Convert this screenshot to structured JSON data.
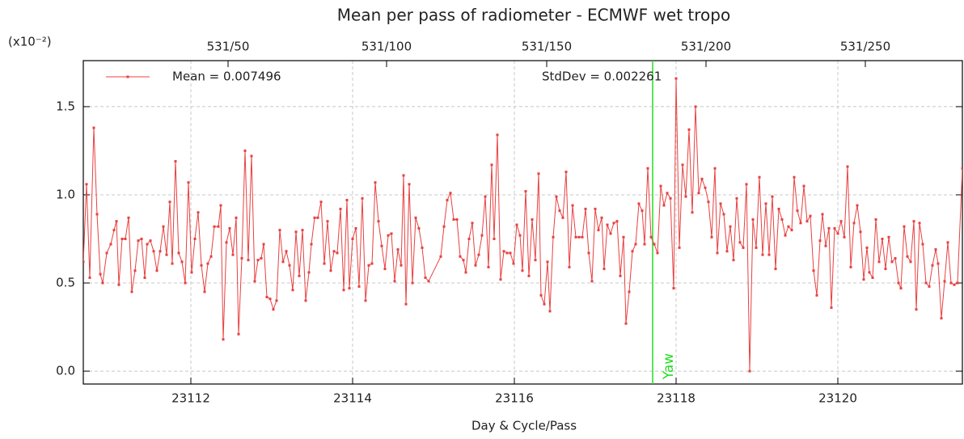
{
  "chart_data": {
    "type": "line",
    "title": "Mean per pass of radiometer - ECMWF wet tropo",
    "xlabel": "Day & Cycle/Pass",
    "y_unit": "(x10⁻²)",
    "xlim": [
      23110.67,
      23121.54
    ],
    "ylim": [
      -0.073,
      1.761
    ],
    "xticks": [
      23112,
      23114,
      23116,
      23118,
      23120
    ],
    "yticks": [
      {
        "value": 0,
        "label": "0.0"
      },
      0.5,
      {
        "value": 1,
        "label": "1.0"
      },
      1.5
    ],
    "x2ticks": [
      {
        "value": 23112.46,
        "label": "531/50"
      },
      {
        "value": 23114.42,
        "label": "531/100"
      },
      {
        "value": 23116.4,
        "label": "531/150"
      },
      {
        "value": 23118.37,
        "label": "531/200"
      },
      {
        "value": 23120.34,
        "label": "531/250"
      }
    ],
    "grid": true,
    "legend": "upper left",
    "annotation": "StdDev = 0.002261",
    "vline": {
      "x": 23117.71,
      "label": "Yaw",
      "color": "#22dd22"
    },
    "x": [
      23110.67,
      23110.71,
      23110.75,
      23110.8,
      23110.84,
      23110.88,
      23110.91,
      23110.96,
      23111.01,
      23111.05,
      23111.08,
      23111.11,
      23111.15,
      23111.19,
      23111.23,
      23111.27,
      23111.31,
      23111.35,
      23111.39,
      23111.43,
      23111.46,
      23111.5,
      23111.54,
      23111.58,
      23111.62,
      23111.66,
      23111.7,
      23111.74,
      23111.77,
      23111.81,
      23111.85,
      23111.89,
      23111.93,
      23111.97,
      23112.01,
      23112.05,
      23112.09,
      23112.13,
      23112.17,
      23112.21,
      23112.25,
      23112.29,
      23112.34,
      23112.37,
      23112.4,
      23112.44,
      23112.48,
      23112.52,
      23112.56,
      23112.59,
      23112.63,
      23112.67,
      23112.71,
      23112.75,
      23112.79,
      23112.83,
      23112.87,
      23112.9,
      23112.94,
      23112.98,
      23113.02,
      23113.06,
      23113.1,
      23113.14,
      23113.18,
      23113.22,
      23113.26,
      23113.3,
      23113.34,
      23113.38,
      23113.42,
      23113.46,
      23113.49,
      23113.53,
      23113.57,
      23113.61,
      23113.65,
      23113.69,
      23113.73,
      23113.77,
      23113.81,
      23113.85,
      23113.89,
      23113.93,
      23113.96,
      23114.0,
      23114.04,
      23114.08,
      23114.12,
      23114.16,
      23114.2,
      23114.24,
      23114.28,
      23114.32,
      23114.36,
      23114.4,
      23114.44,
      23114.48,
      23114.52,
      23114.56,
      23114.6,
      23114.63,
      23114.66,
      23114.7,
      23114.74,
      23114.78,
      23114.82,
      23114.86,
      23114.9,
      23114.94,
      23115.09,
      23115.13,
      23115.17,
      23115.21,
      23115.25,
      23115.29,
      23115.33,
      23115.37,
      23115.4,
      23115.44,
      23115.48,
      23115.52,
      23115.56,
      23115.6,
      23115.64,
      23115.68,
      23115.72,
      23115.75,
      23115.79,
      23115.83,
      23115.87,
      23115.91,
      23115.95,
      23115.99,
      23116.03,
      23116.07,
      23116.1,
      23116.14,
      23116.18,
      23116.22,
      23116.26,
      23116.3,
      23116.33,
      23116.37,
      23116.41,
      23116.44,
      23116.48,
      23116.52,
      23116.56,
      23116.6,
      23116.64,
      23116.68,
      23116.72,
      23116.76,
      23116.8,
      23116.84,
      23116.88,
      23116.92,
      23116.96,
      23117.0,
      23117.04,
      23117.08,
      23117.11,
      23117.15,
      23117.19,
      23117.23,
      23117.27,
      23117.31,
      23117.35,
      23117.38,
      23117.42,
      23117.46,
      23117.5,
      23117.54,
      23117.58,
      23117.61,
      23117.65,
      23117.69,
      23117.73,
      23117.77,
      23117.81,
      23117.85,
      23117.89,
      23117.93,
      23117.97,
      23118.0,
      23118.04,
      23118.08,
      23118.12,
      23118.16,
      23118.2,
      23118.24,
      23118.28,
      23118.32,
      23118.36,
      23118.4,
      23118.44,
      23118.48,
      23118.51,
      23118.55,
      23118.59,
      23118.63,
      23118.67,
      23118.71,
      23118.75,
      23118.79,
      23118.83,
      23118.87,
      23118.91,
      23118.95,
      23118.99,
      23119.03,
      23119.07,
      23119.11,
      23119.15,
      23119.19,
      23119.23,
      23119.27,
      23119.31,
      23119.35,
      23119.39,
      23119.43,
      23119.46,
      23119.5,
      23119.54,
      23119.58,
      23119.62,
      23119.66,
      23119.7,
      23119.74,
      23119.78,
      23119.81,
      23119.85,
      23119.89,
      23119.92,
      23119.96,
      23120.0,
      23120.04,
      23120.08,
      23120.12,
      23120.16,
      23120.2,
      23120.24,
      23120.28,
      23120.32,
      23120.36,
      23120.39,
      23120.43,
      23120.47,
      23120.51,
      23120.55,
      23120.59,
      23120.63,
      23120.67,
      23120.71,
      23120.75,
      23120.78,
      23120.82,
      23120.86,
      23120.9,
      23120.94,
      23120.97,
      23121.01,
      23121.05,
      23121.09,
      23121.13,
      23121.17,
      23121.21,
      23121.24,
      23121.28,
      23121.32,
      23121.36,
      23121.4,
      23121.44,
      23121.48,
      23121.54
    ],
    "series": [
      {
        "name": "Mean = 0.007496",
        "color": "#e84040",
        "values": [
          0.62,
          1.06,
          0.53,
          1.38,
          0.89,
          0.55,
          0.5,
          0.67,
          0.72,
          0.8,
          0.85,
          0.49,
          0.75,
          0.75,
          0.87,
          0.45,
          0.57,
          0.74,
          0.75,
          0.53,
          0.72,
          0.74,
          0.68,
          0.57,
          0.68,
          0.82,
          0.66,
          0.96,
          0.61,
          1.19,
          0.67,
          0.62,
          0.5,
          1.07,
          0.56,
          0.75,
          0.9,
          0.6,
          0.45,
          0.61,
          0.65,
          0.82,
          0.82,
          0.94,
          0.18,
          0.73,
          0.81,
          0.66,
          0.87,
          0.21,
          0.64,
          1.25,
          0.63,
          1.22,
          0.51,
          0.63,
          0.64,
          0.72,
          0.42,
          0.41,
          0.35,
          0.4,
          0.8,
          0.62,
          0.68,
          0.6,
          0.46,
          0.79,
          0.54,
          0.8,
          0.4,
          0.56,
          0.72,
          0.87,
          0.87,
          0.96,
          0.61,
          0.85,
          0.57,
          0.68,
          0.67,
          0.92,
          0.46,
          0.97,
          0.47,
          0.75,
          0.81,
          0.48,
          0.98,
          0.4,
          0.6,
          0.61,
          1.07,
          0.85,
          0.71,
          0.58,
          0.77,
          0.78,
          0.51,
          0.69,
          0.6,
          1.11,
          0.38,
          1.06,
          0.5,
          0.87,
          0.81,
          0.7,
          0.53,
          0.51,
          0.65,
          0.82,
          0.97,
          1.01,
          0.86,
          0.86,
          0.65,
          0.63,
          0.56,
          0.75,
          0.84,
          0.6,
          0.66,
          0.77,
          0.99,
          0.59,
          1.17,
          0.75,
          1.34,
          0.52,
          0.68,
          0.67,
          0.67,
          0.61,
          0.83,
          0.77,
          0.57,
          1.02,
          0.54,
          0.86,
          0.63,
          1.12,
          0.43,
          0.38,
          0.62,
          0.34,
          0.76,
          0.99,
          0.91,
          0.87,
          1.13,
          0.59,
          0.94,
          0.76,
          0.76,
          0.76,
          0.92,
          0.67,
          0.51,
          0.92,
          0.8,
          0.87,
          0.58,
          0.83,
          0.78,
          0.84,
          0.85,
          0.54,
          0.76,
          0.27,
          0.45,
          0.68,
          0.72,
          0.95,
          0.91,
          0.72,
          1.15,
          0.76,
          0.72,
          0.67,
          1.05,
          0.94,
          1.01,
          0.98,
          0.47,
          1.66,
          0.7,
          1.17,
          0.99,
          1.37,
          0.9,
          1.5,
          1.01,
          1.09,
          1.04,
          0.96,
          0.76,
          1.15,
          0.67,
          0.95,
          0.89,
          0.68,
          0.82,
          0.63,
          0.98,
          0.73,
          0.7,
          1.06,
          0.0,
          0.86,
          0.7,
          1.1,
          0.66,
          0.95,
          0.66,
          0.99,
          0.58,
          0.92,
          0.86,
          0.77,
          0.82,
          0.8,
          1.1,
          0.91,
          0.84,
          1.05,
          0.85,
          0.88,
          0.57,
          0.43,
          0.74,
          0.89,
          0.71,
          0.81,
          0.36,
          0.81,
          0.78,
          0.85,
          0.76,
          1.16,
          0.59,
          0.84,
          0.94,
          0.79,
          0.52,
          0.7,
          0.56,
          0.53,
          0.86,
          0.62,
          0.75,
          0.58,
          0.76,
          0.62,
          0.64,
          0.5,
          0.47,
          0.82,
          0.65,
          0.62,
          0.85,
          0.35,
          0.84,
          0.72,
          0.5,
          0.48,
          0.6,
          0.69,
          0.61,
          0.3,
          0.51,
          0.73,
          0.5,
          0.49,
          0.5,
          1.15
        ]
      }
    ]
  }
}
